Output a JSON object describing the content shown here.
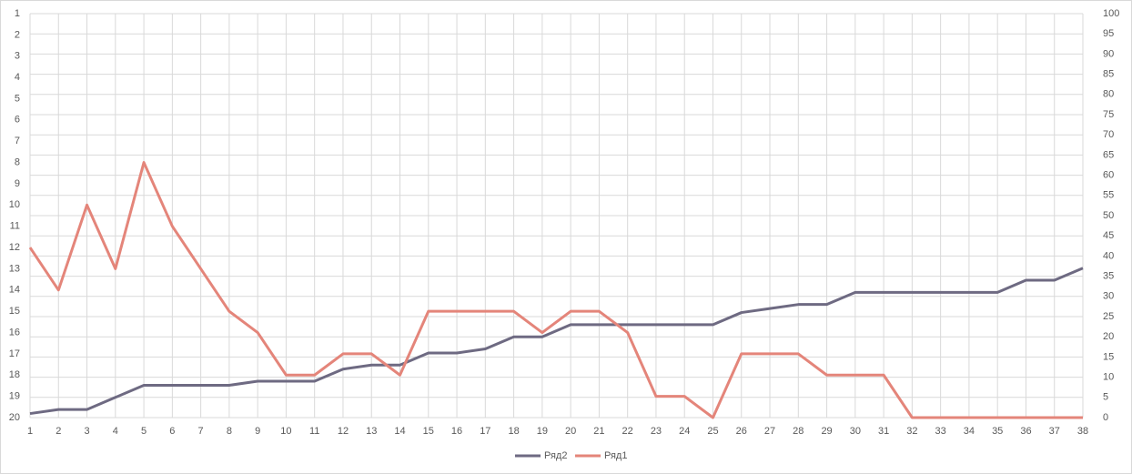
{
  "chart_data": {
    "type": "line",
    "categories": [
      "1",
      "2",
      "3",
      "4",
      "5",
      "6",
      "7",
      "8",
      "9",
      "10",
      "11",
      "12",
      "13",
      "14",
      "15",
      "16",
      "17",
      "18",
      "19",
      "20",
      "21",
      "22",
      "23",
      "24",
      "25",
      "26",
      "27",
      "28",
      "29",
      "30",
      "31",
      "32",
      "33",
      "34",
      "35",
      "36",
      "37",
      "38"
    ],
    "series": [
      {
        "name": "Ряд2",
        "color": "#6e6a82",
        "axis": "y2",
        "values": [
          1,
          2,
          2,
          5,
          8,
          8,
          8,
          8,
          9,
          9,
          9,
          12,
          13,
          13,
          16,
          16,
          17,
          20,
          20,
          23,
          23,
          23,
          23,
          23,
          23,
          26,
          27,
          28,
          28,
          31,
          31,
          31,
          31,
          31,
          31,
          34,
          34,
          37
        ]
      },
      {
        "name": "Ряд1",
        "color": "#e4857a",
        "values": [
          12,
          14,
          10,
          13,
          8,
          11,
          13,
          15,
          16,
          18,
          18,
          17,
          17,
          18,
          15,
          15,
          15,
          15,
          16,
          15,
          15,
          16,
          19,
          19,
          20,
          17,
          17,
          17,
          18,
          18,
          18,
          20,
          20,
          20,
          20,
          20,
          20,
          20
        ]
      }
    ],
    "ylim": [
      20,
      1
    ],
    "yticks": [
      1,
      2,
      3,
      4,
      5,
      6,
      7,
      8,
      9,
      10,
      11,
      12,
      13,
      14,
      15,
      16,
      17,
      18,
      19,
      20
    ],
    "y2lim": [
      0,
      100
    ],
    "y2ticks": [
      0,
      5,
      10,
      15,
      20,
      25,
      30,
      35,
      40,
      45,
      50,
      55,
      60,
      65,
      70,
      75,
      80,
      85,
      90,
      95,
      100
    ],
    "grid": true,
    "legend": "bottom"
  }
}
